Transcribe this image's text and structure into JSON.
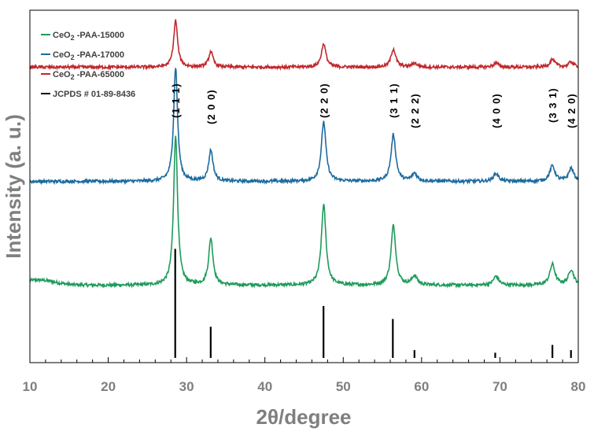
{
  "chart_data": {
    "type": "line",
    "title": "",
    "xlabel": "2θ/degree",
    "ylabel": "Intensity (a. u.)",
    "xlim": [
      10,
      80
    ],
    "x_ticks": [
      "10",
      "20",
      "30",
      "40",
      "50",
      "60",
      "70",
      "80"
    ],
    "grid": false,
    "legend_position": "top-left",
    "series": [
      {
        "name": "CeO2 -PAA-15000",
        "name_main": "CeO",
        "name_sub": "2",
        "name_rest": " -PAA-15000",
        "color": "#1e9b5a",
        "offset": 0.28,
        "baseline": 0.02,
        "peaks": [
          {
            "x": 28.6,
            "h": 0.58,
            "w": 0.3
          },
          {
            "x": 33.1,
            "h": 0.18,
            "w": 0.33
          },
          {
            "x": 47.5,
            "h": 0.31,
            "w": 0.35
          },
          {
            "x": 56.4,
            "h": 0.23,
            "w": 0.36
          },
          {
            "x": 59.1,
            "h": 0.035,
            "w": 0.4
          },
          {
            "x": 69.5,
            "h": 0.035,
            "w": 0.4
          },
          {
            "x": 76.7,
            "h": 0.08,
            "w": 0.4
          },
          {
            "x": 79.1,
            "h": 0.06,
            "w": 0.4
          }
        ]
      },
      {
        "name": "CeO2 -PAA-17000",
        "name_main": "CeO",
        "name_sub": "2",
        "name_rest": " -PAA-17000",
        "color": "#1c6b9e",
        "offset": 0.68,
        "baseline": 0.0,
        "peaks": [
          {
            "x": 28.6,
            "h": 0.44,
            "w": 0.3
          },
          {
            "x": 33.1,
            "h": 0.12,
            "w": 0.33
          },
          {
            "x": 47.5,
            "h": 0.23,
            "w": 0.35
          },
          {
            "x": 56.4,
            "h": 0.18,
            "w": 0.36
          },
          {
            "x": 59.1,
            "h": 0.03,
            "w": 0.4
          },
          {
            "x": 69.5,
            "h": 0.03,
            "w": 0.4
          },
          {
            "x": 76.7,
            "h": 0.06,
            "w": 0.4
          },
          {
            "x": 79.1,
            "h": 0.05,
            "w": 0.4
          }
        ]
      },
      {
        "name": "CeO2 -PAA-65000",
        "name_main": "CeO",
        "name_sub": "2",
        "name_rest": " -PAA-65000",
        "color": "#c0282d",
        "offset": 1.12,
        "baseline": 0.0,
        "peaks": [
          {
            "x": 28.6,
            "h": 0.18,
            "w": 0.3
          },
          {
            "x": 33.1,
            "h": 0.06,
            "w": 0.33
          },
          {
            "x": 47.5,
            "h": 0.09,
            "w": 0.35
          },
          {
            "x": 56.4,
            "h": 0.07,
            "w": 0.36
          },
          {
            "x": 59.1,
            "h": 0.015,
            "w": 0.4
          },
          {
            "x": 69.5,
            "h": 0.015,
            "w": 0.4
          },
          {
            "x": 76.7,
            "h": 0.03,
            "w": 0.4
          },
          {
            "x": 79.1,
            "h": 0.02,
            "w": 0.4
          }
        ]
      }
    ],
    "reference": {
      "name": "JCPDS # 01-89-8436",
      "color": "#000000",
      "lines": [
        {
          "x": 28.55,
          "h": 0.42
        },
        {
          "x": 33.08,
          "h": 0.12
        },
        {
          "x": 47.48,
          "h": 0.2
        },
        {
          "x": 56.33,
          "h": 0.15
        },
        {
          "x": 59.09,
          "h": 0.03
        },
        {
          "x": 69.4,
          "h": 0.02
        },
        {
          "x": 76.7,
          "h": 0.05
        },
        {
          "x": 79.07,
          "h": 0.03
        }
      ]
    },
    "annotations": [
      {
        "text": "(1 1 1)",
        "x": 28.6
      },
      {
        "text": "(2 0 0)",
        "x": 33.1
      },
      {
        "text": "(2 2 0)",
        "x": 47.5
      },
      {
        "text": "(3 1 1)",
        "x": 56.4
      },
      {
        "text": "(2 2 2)",
        "x": 59.1
      },
      {
        "text": "(4 0 0)",
        "x": 69.5
      },
      {
        "text": "(3 3 1)",
        "x": 76.7
      },
      {
        "text": "(4 2 0)",
        "x": 79.1
      }
    ]
  }
}
